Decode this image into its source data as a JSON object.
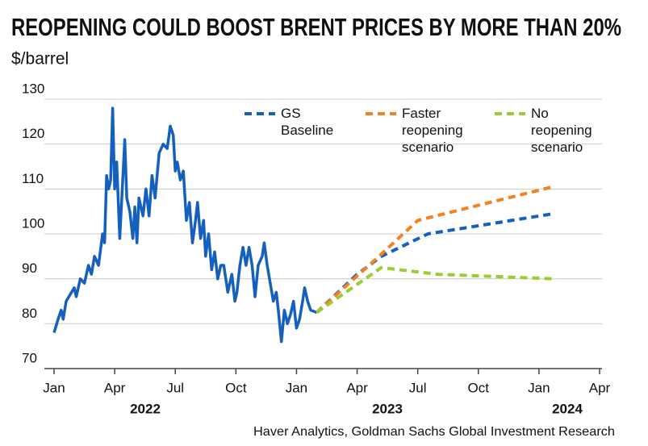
{
  "chart_data": {
    "type": "line",
    "title": "REOPENING COULD BOOST BRENT PRICES BY MORE THAN 20%",
    "subtitle": "$/barrel",
    "source": "Haver Analytics, Goldman Sachs Global Investment Research",
    "year_labels": [
      "2022",
      "2023",
      "2024"
    ],
    "xlim": [
      0,
      27
    ],
    "xticks": [
      {
        "value": 0,
        "label": "Jan"
      },
      {
        "value": 3,
        "label": "Apr"
      },
      {
        "value": 6,
        "label": "Jul"
      },
      {
        "value": 9,
        "label": "Oct"
      },
      {
        "value": 12,
        "label": "Jan"
      },
      {
        "value": 15,
        "label": "Apr"
      },
      {
        "value": 18,
        "label": "Jul"
      },
      {
        "value": 21,
        "label": "Oct"
      },
      {
        "value": 24,
        "label": "Jan"
      },
      {
        "value": 27,
        "label": "Apr"
      }
    ],
    "ylim": [
      70,
      130
    ],
    "yticks": [
      70,
      80,
      90,
      100,
      110,
      120,
      130
    ],
    "grid": true,
    "series": [
      {
        "color": "#1560bd",
        "dash": false,
        "x": [
          0,
          0.2,
          0.35,
          0.45,
          0.6,
          0.8,
          1.0,
          1.1,
          1.3,
          1.5,
          1.7,
          1.85,
          2.0,
          2.2,
          2.4,
          2.5,
          2.6,
          2.7,
          2.8,
          2.9,
          3.0,
          3.1,
          3.25,
          3.4,
          3.5,
          3.6,
          3.75,
          3.9,
          4.0,
          4.1,
          4.2,
          4.4,
          4.55,
          4.7,
          4.85,
          5.0,
          5.2,
          5.4,
          5.6,
          5.75,
          5.9,
          6.0,
          6.1,
          6.25,
          6.4,
          6.55,
          6.7,
          6.85,
          7.0,
          7.1,
          7.25,
          7.4,
          7.5,
          7.65,
          7.8,
          7.95,
          8.1,
          8.25,
          8.4,
          8.6,
          8.8,
          8.95,
          9.05,
          9.2,
          9.35,
          9.5,
          9.65,
          9.8,
          9.95,
          10.1,
          10.3,
          10.4,
          10.55,
          10.7,
          10.85,
          11.0,
          11.1,
          11.25,
          11.4,
          11.55,
          11.7,
          11.85,
          12.0,
          12.15,
          12.3,
          12.4,
          12.55,
          12.7,
          13.0
        ],
        "values": [
          78,
          81,
          83,
          81,
          85,
          86.5,
          88,
          86,
          90,
          89,
          93,
          91,
          95,
          93,
          100,
          98,
          113,
          110,
          112,
          128,
          110,
          116,
          99,
          112,
          121,
          108,
          105,
          99,
          106,
          98,
          108,
          104,
          110,
          104,
          113,
          108,
          118,
          120,
          119,
          124,
          122,
          114,
          116,
          112,
          114,
          103,
          107,
          98,
          103,
          107,
          99,
          103,
          95,
          100,
          92,
          96,
          90,
          93,
          93,
          87,
          91,
          85,
          87,
          93,
          97,
          93,
          97,
          93,
          86,
          93,
          95,
          98,
          93,
          89,
          85,
          87,
          83,
          76,
          83,
          80,
          82,
          85,
          79,
          81,
          85,
          88,
          85,
          83,
          82.5
        ]
      },
      {
        "name": "GS Baseline",
        "color": "#1560bd",
        "dash": true,
        "x": [
          13,
          15,
          16.2,
          18.5,
          24.7
        ],
        "values": [
          82.5,
          91,
          95,
          100,
          104.5
        ]
      },
      {
        "name": "Faster reopening scenario",
        "color": "#f58220",
        "dash": true,
        "x": [
          13,
          16.2,
          18,
          24.7
        ],
        "values": [
          82.5,
          95.5,
          103,
          110.5
        ]
      },
      {
        "name": "No reopening scenario",
        "color": "#9acd32",
        "dash": true,
        "x": [
          13,
          16.2,
          19,
          24.7
        ],
        "values": [
          82.5,
          92.5,
          91,
          90
        ]
      }
    ]
  }
}
